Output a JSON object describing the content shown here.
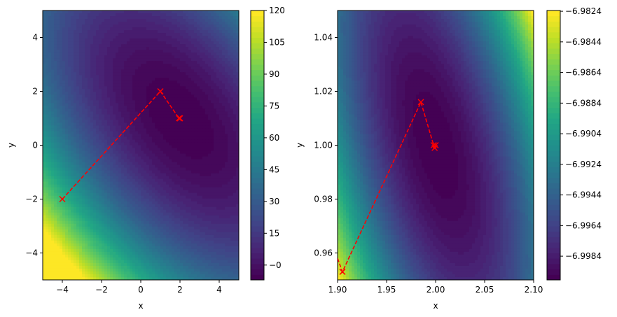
{
  "chart_data": [
    {
      "type": "heatmap",
      "subtype": "filled contour with optimizer path",
      "xlabel": "x",
      "ylabel": "y",
      "xlim": [
        -5,
        5
      ],
      "ylim": [
        -5,
        5
      ],
      "xticks": [
        "−4",
        "−2",
        "0",
        "2",
        "4"
      ],
      "xtick_values": [
        -4,
        -2,
        0,
        2,
        4
      ],
      "yticks": [
        "−4",
        "−2",
        "0",
        "2",
        "4"
      ],
      "ytick_values": [
        -4,
        -2,
        0,
        2,
        4
      ],
      "colormap": "viridis",
      "colorbar": {
        "range": [
          -7,
          120
        ],
        "ticks": [
          "−0",
          "15",
          "30",
          "45",
          "60",
          "75",
          "90",
          "105",
          "120"
        ],
        "tick_values": [
          0,
          15,
          30,
          45,
          60,
          75,
          90,
          105,
          120
        ]
      },
      "contour_levels": 50,
      "surface_minimum": {
        "x": 2.0,
        "y": 1.0,
        "value": -7.0
      },
      "path": {
        "color": "#ff0000",
        "style": "dashed",
        "marker": "x",
        "x": [
          -4.0,
          1.0,
          1.95,
          1.99,
          2.0
        ],
        "y": [
          -2.0,
          2.0,
          1.0,
          1.0,
          1.0
        ]
      },
      "grid": false
    },
    {
      "type": "heatmap",
      "subtype": "filled contour with optimizer path (zoomed)",
      "xlabel": "x",
      "ylabel": "y",
      "xlim": [
        1.9,
        2.1
      ],
      "ylim": [
        0.95,
        1.05
      ],
      "xticks": [
        "1.90",
        "1.95",
        "2.00",
        "2.05",
        "2.10"
      ],
      "xtick_values": [
        1.9,
        1.95,
        2.0,
        2.05,
        2.1
      ],
      "yticks": [
        "0.96",
        "0.98",
        "1.00",
        "1.02",
        "1.04"
      ],
      "ytick_values": [
        0.96,
        0.98,
        1.0,
        1.02,
        1.04
      ],
      "colormap": "viridis",
      "colorbar": {
        "range": [
          -6.99995,
          -6.98235
        ],
        "ticks": [
          "−6.9984",
          "−6.9964",
          "−6.9944",
          "−6.9924",
          "−6.9904",
          "−6.9884",
          "−6.9864",
          "−6.9844",
          "−6.9824"
        ],
        "tick_values": [
          -6.9984,
          -6.9964,
          -6.9944,
          -6.9924,
          -6.9904,
          -6.9884,
          -6.9864,
          -6.9844,
          -6.9824
        ]
      },
      "contour_levels": 50,
      "path": {
        "color": "#ff0000",
        "style": "dashed",
        "marker": "x",
        "x": [
          1.9,
          1.905,
          1.985,
          1.998,
          1.999,
          2.0
        ],
        "y": [
          0.958,
          0.953,
          1.016,
          1.0,
          0.999,
          1.0
        ],
        "marker_from_index": 1
      },
      "grid": false
    }
  ]
}
